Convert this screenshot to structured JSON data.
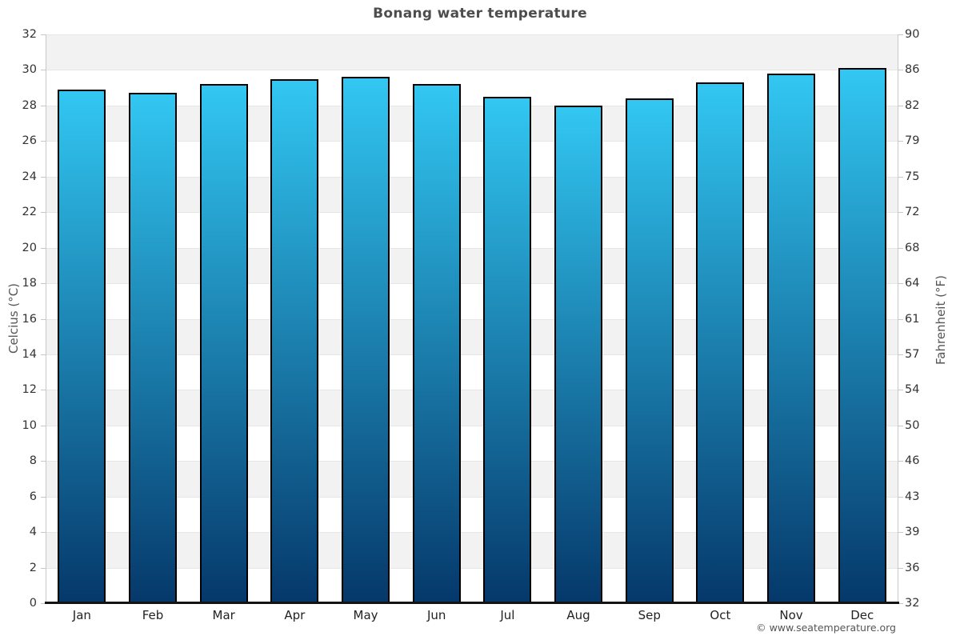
{
  "chart_data": {
    "type": "bar",
    "title": "Bonang water temperature",
    "categories": [
      "Jan",
      "Feb",
      "Mar",
      "Apr",
      "May",
      "Jun",
      "Jul",
      "Aug",
      "Sep",
      "Oct",
      "Nov",
      "Dec"
    ],
    "values": [
      28.9,
      28.7,
      29.2,
      29.5,
      29.6,
      29.2,
      28.5,
      28.0,
      28.4,
      29.3,
      29.8,
      30.1
    ],
    "ylabel_left": "Celcius (°C)",
    "ylabel_right": "Fahrenheit (°F)",
    "ylim_left": [
      0,
      32
    ],
    "ylim_right": [
      32,
      90
    ],
    "y_ticks_left": [
      32,
      30,
      28,
      26,
      24,
      22,
      20,
      18,
      16,
      14,
      12,
      10,
      8,
      6,
      4,
      2,
      0
    ],
    "y_ticks_right": [
      90,
      86,
      82,
      79,
      75,
      72,
      68,
      64,
      61,
      57,
      54,
      50,
      46,
      43,
      39,
      36,
      32
    ],
    "grid": "alternating horizontal bands every 2°C, gray starting at top band 30-32",
    "legend": "none",
    "colors": {
      "bar_gradient_top": "#32c7f2",
      "bar_gradient_bottom": "#05386a",
      "bar_border": "#000000",
      "band_gray": "#f2f2f2",
      "band_white": "#ffffff",
      "band_boundary_line": "#e6e6e6",
      "y_axis_line": "#c8c8c8",
      "x_axis_line": "#141414",
      "title_text": "#4d4d4d",
      "tick_text": "#333333",
      "month_text": "#222222",
      "axis_title_text": "#555555"
    }
  },
  "footer": {
    "credit": "© www.seatemperature.org"
  }
}
